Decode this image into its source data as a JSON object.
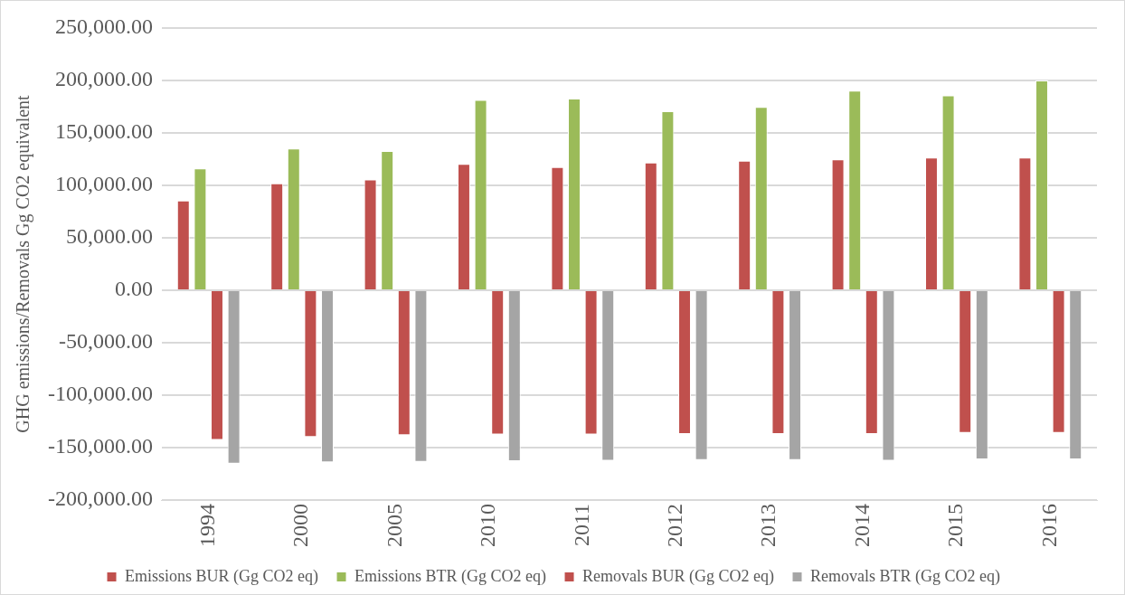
{
  "chart_data": {
    "type": "bar",
    "ylabel": "GHG emissions/Removals Gg CO2 equivalent",
    "categories": [
      "1994",
      "2000",
      "2005",
      "2010",
      "2011",
      "2012",
      "2013",
      "2014",
      "2015",
      "2016"
    ],
    "series": [
      {
        "name": "Emissions BUR (Gg CO2 eq)",
        "color": "#c0504d",
        "values": [
          85600,
          102000,
          105700,
          120500,
          117400,
          121700,
          123500,
          124800,
          126600,
          126600
        ]
      },
      {
        "name": "Emissions BTR (Gg CO2 eq)",
        "color": "#9bbb59",
        "values": [
          116100,
          135200,
          132800,
          181500,
          182700,
          170700,
          174700,
          190400,
          185800,
          200000
        ]
      },
      {
        "name": "Removals BUR (Gg CO2 eq)",
        "color": "#c0504d",
        "values": [
          -142700,
          -139900,
          -138200,
          -137600,
          -137600,
          -137000,
          -137000,
          -137000,
          -136000,
          -136000
        ]
      },
      {
        "name": "Removals BTR (Gg CO2 eq)",
        "color": "#a5a5a5",
        "values": [
          -165200,
          -164000,
          -163500,
          -162900,
          -162400,
          -161800,
          -161800,
          -162400,
          -161200,
          -161200
        ]
      }
    ],
    "ylim": [
      -200000,
      250000
    ],
    "yticks": [
      {
        "value": -200000,
        "label": "-200,000.00"
      },
      {
        "value": -150000,
        "label": "-150,000.00"
      },
      {
        "value": -100000,
        "label": "-100,000.00"
      },
      {
        "value": -50000,
        "label": "-50,000.00"
      },
      {
        "value": 0,
        "label": "0.00"
      },
      {
        "value": 50000,
        "label": "50,000.00"
      },
      {
        "value": 100000,
        "label": "100,000.00"
      },
      {
        "value": 150000,
        "label": "150,000.00"
      },
      {
        "value": 200000,
        "label": "200,000.00"
      },
      {
        "value": 250000,
        "label": "250,000.00"
      }
    ],
    "grid": "y",
    "legend": "bottom"
  }
}
